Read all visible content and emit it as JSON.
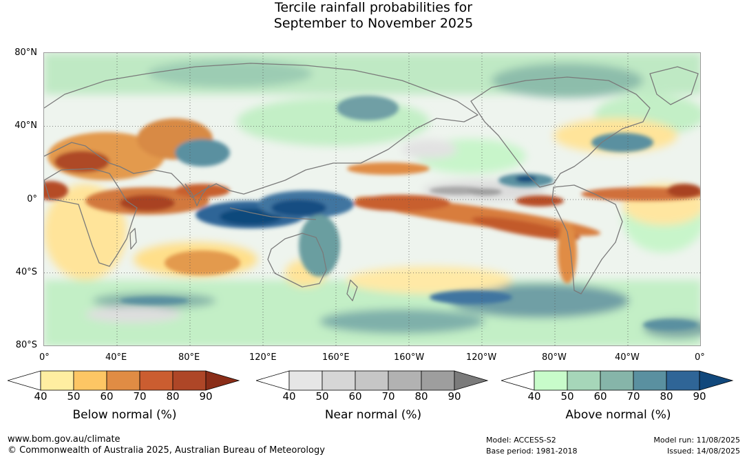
{
  "title": {
    "line1": "Tercile rainfall probabilities for",
    "line2": "September to November 2025"
  },
  "map": {
    "lat_labels": [
      "80°N",
      "40°N",
      "0°",
      "40°S",
      "80°S"
    ],
    "lon_labels": [
      "0°",
      "40°E",
      "80°E",
      "120°E",
      "160°E",
      "160°W",
      "120°W",
      "80°W",
      "40°W",
      "0°"
    ]
  },
  "legends": [
    {
      "title": "Below normal (%)",
      "ticks": [
        "40",
        "50",
        "60",
        "70",
        "80",
        "90"
      ],
      "colors": [
        "#ffeea1",
        "#fdc664",
        "#e08c44",
        "#cb5d30",
        "#ae4627",
        "#8a2d18"
      ]
    },
    {
      "title": "Near normal (%)",
      "ticks": [
        "40",
        "50",
        "60",
        "70",
        "80",
        "90"
      ],
      "colors": [
        "#e6e6e6",
        "#d6d6d6",
        "#c6c6c6",
        "#b2b2b2",
        "#9e9e9e",
        "#7b7b7b"
      ]
    },
    {
      "title": "Above normal (%)",
      "ticks": [
        "40",
        "50",
        "60",
        "70",
        "80",
        "90"
      ],
      "colors": [
        "#c8fcca",
        "#a6d6b9",
        "#86b5a9",
        "#5a90a0",
        "#2f6597",
        "#11487c"
      ]
    }
  ],
  "footer": {
    "website": "www.bom.gov.au/climate",
    "copyright": "© Commonwealth of Australia 2025, Australian Bureau of Meteorology",
    "model": "Model: ACCESS-S2",
    "base_period": "Base period: 1981-2018",
    "model_run": "Model run: 11/08/2025",
    "issued": "Issued: 14/08/2025"
  }
}
